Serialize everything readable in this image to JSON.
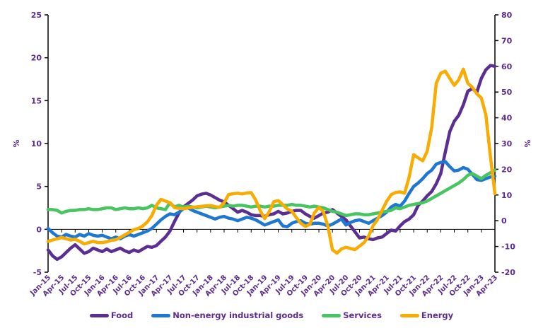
{
  "colors": {
    "text": "#5B2D90",
    "axis_line": "#000000",
    "background": "#FFFFFF",
    "food": "#5B2E91",
    "neig": "#1E78D2",
    "services": "#48C560",
    "energy": "#F8AB00"
  },
  "chart_data": {
    "type": "line",
    "title": "",
    "grid": false,
    "legend_position": "bottom",
    "x": [
      "Jan-15",
      "Feb-15",
      "Mar-15",
      "Apr-15",
      "May-15",
      "Jun-15",
      "Jul-15",
      "Aug-15",
      "Sep-15",
      "Oct-15",
      "Nov-15",
      "Dec-15",
      "Jan-16",
      "Feb-16",
      "Mar-16",
      "Apr-16",
      "May-16",
      "Jun-16",
      "Jul-16",
      "Aug-16",
      "Sep-16",
      "Oct-16",
      "Nov-16",
      "Dec-16",
      "Jan-17",
      "Feb-17",
      "Mar-17",
      "Apr-17",
      "May-17",
      "Jun-17",
      "Jul-17",
      "Aug-17",
      "Sep-17",
      "Oct-17",
      "Nov-17",
      "Dec-17",
      "Jan-18",
      "Feb-18",
      "Mar-18",
      "Apr-18",
      "May-18",
      "Jun-18",
      "Jul-18",
      "Aug-18",
      "Sep-18",
      "Oct-18",
      "Nov-18",
      "Dec-18",
      "Jan-19",
      "Feb-19",
      "Mar-19",
      "Apr-19",
      "May-19",
      "Jun-19",
      "Jul-19",
      "Aug-19",
      "Sep-19",
      "Oct-19",
      "Nov-19",
      "Dec-19",
      "Jan-20",
      "Feb-20",
      "Mar-20",
      "Apr-20",
      "May-20",
      "Jun-20",
      "Jul-20",
      "Aug-20",
      "Sep-20",
      "Oct-20",
      "Nov-20",
      "Dec-20",
      "Jan-21",
      "Feb-21",
      "Mar-21",
      "Apr-21",
      "May-21",
      "Jun-21",
      "Jul-21",
      "Aug-21",
      "Sep-21",
      "Oct-21",
      "Nov-21",
      "Dec-21",
      "Jan-22",
      "Feb-22",
      "Mar-22",
      "Apr-22",
      "May-22",
      "Jun-22",
      "Jul-22",
      "Aug-22",
      "Sep-22",
      "Oct-22",
      "Nov-22",
      "Dec-22",
      "Jan-23",
      "Feb-23",
      "Mar-23",
      "Apr-23"
    ],
    "x_axis_shown_labels": [
      "Jan-15",
      "Apr-15",
      "Jul-15",
      "Oct-15",
      "Jan-16",
      "Apr-16",
      "Jul-16",
      "Oct-16",
      "Jan-17",
      "Apr-17",
      "Jul-17",
      "Oct-17",
      "Jan-18",
      "Apr-18",
      "Jul-18",
      "Oct-18",
      "Jan-19",
      "Apr-19",
      "Jul-19",
      "Oct-19",
      "Jan-20",
      "Apr-20",
      "Jul-20",
      "Oct-20",
      "Jan-21",
      "Apr-21",
      "Jul-21",
      "Oct-21",
      "Jan-22",
      "Apr-22",
      "Jul-22",
      "Oct-22",
      "Jan-23",
      "Apr-23"
    ],
    "left_axis": {
      "label": "%",
      "min": -5,
      "max": 25,
      "step": 5,
      "ticks": [
        25,
        20,
        15,
        10,
        5,
        0,
        -5
      ]
    },
    "right_axis": {
      "label": "%",
      "min": -20,
      "max": 80,
      "step": 10,
      "ticks": [
        80,
        70,
        60,
        50,
        40,
        30,
        20,
        10,
        0,
        -10,
        -20
      ]
    },
    "series": [
      {
        "name": "Food",
        "axis": "left",
        "color": "#5B2E91",
        "values": [
          -2.4,
          -3.1,
          -3.5,
          -3.2,
          -2.7,
          -2.2,
          -1.8,
          -2.3,
          -2.8,
          -2.6,
          -2.2,
          -2.4,
          -2.6,
          -2.3,
          -2.6,
          -2.4,
          -2.2,
          -2.5,
          -2.7,
          -2.4,
          -2.6,
          -2.3,
          -2.0,
          -2.1,
          -1.9,
          -1.4,
          -0.9,
          -0.2,
          0.9,
          1.9,
          2.6,
          3.0,
          3.4,
          3.9,
          4.1,
          4.2,
          4.0,
          3.7,
          3.4,
          3.2,
          2.8,
          2.4,
          2.0,
          2.2,
          2.0,
          1.7,
          1.6,
          1.6,
          1.5,
          1.7,
          1.8,
          2.1,
          1.8,
          1.9,
          2.1,
          2.2,
          2.2,
          1.8,
          1.5,
          1.3,
          1.6,
          1.9,
          2.0,
          2.3,
          1.9,
          1.5,
          1.1,
          0.4,
          -0.3,
          -1.0,
          -0.9,
          -1.1,
          -1.2,
          -1.0,
          -0.9,
          -0.5,
          -0.1,
          -0.2,
          0.4,
          0.9,
          1.2,
          1.7,
          2.8,
          3.3,
          3.9,
          4.4,
          5.3,
          6.5,
          9.0,
          11.4,
          12.6,
          13.3,
          14.5,
          16.1,
          16.4,
          16.0,
          17.6,
          18.6,
          19.1,
          19.0
        ]
      },
      {
        "name": "Non-energy industrial goods",
        "axis": "left",
        "color": "#1E78D2",
        "values": [
          0.1,
          -0.4,
          -0.8,
          -0.9,
          -0.6,
          -0.8,
          -0.9,
          -0.6,
          -0.8,
          -0.5,
          -0.7,
          -0.8,
          -0.7,
          -0.9,
          -1.1,
          -0.9,
          -1.1,
          -0.8,
          -0.6,
          -0.8,
          -0.6,
          -0.4,
          -0.2,
          0.1,
          0.6,
          1.1,
          1.5,
          1.8,
          1.7,
          2.0,
          2.4,
          2.5,
          2.2,
          2.0,
          1.8,
          1.6,
          1.4,
          1.2,
          1.4,
          1.5,
          1.3,
          1.2,
          1.0,
          1.2,
          1.4,
          1.3,
          1.1,
          0.8,
          0.5,
          0.7,
          0.9,
          1.1,
          0.4,
          0.3,
          0.7,
          0.9,
          1.0,
          0.7,
          0.6,
          0.7,
          0.7,
          0.6,
          0.4,
          0.6,
          0.9,
          1.2,
          0.5,
          0.8,
          1.0,
          1.1,
          0.9,
          0.7,
          1.0,
          1.3,
          1.6,
          2.0,
          2.6,
          2.9,
          2.7,
          3.3,
          4.2,
          5.0,
          5.4,
          5.9,
          6.5,
          6.9,
          7.6,
          7.8,
          7.9,
          7.3,
          6.8,
          6.9,
          7.2,
          7.0,
          6.4,
          5.8,
          5.7,
          5.9,
          6.1,
          6.2
        ]
      },
      {
        "name": "Services",
        "axis": "left",
        "color": "#48C560",
        "values": [
          2.3,
          2.3,
          2.2,
          1.9,
          2.1,
          2.2,
          2.2,
          2.3,
          2.3,
          2.4,
          2.3,
          2.3,
          2.4,
          2.5,
          2.5,
          2.3,
          2.4,
          2.5,
          2.4,
          2.4,
          2.5,
          2.4,
          2.5,
          2.8,
          2.5,
          2.4,
          2.3,
          3.1,
          2.6,
          2.8,
          2.6,
          2.7,
          2.6,
          2.5,
          2.6,
          2.7,
          2.6,
          2.5,
          2.6,
          2.7,
          2.8,
          2.7,
          2.8,
          2.8,
          2.7,
          2.6,
          2.7,
          2.7,
          2.6,
          2.7,
          2.7,
          2.8,
          2.8,
          2.8,
          2.9,
          2.8,
          2.8,
          2.7,
          2.6,
          2.7,
          2.6,
          2.5,
          2.3,
          2.1,
          2.0,
          1.8,
          1.6,
          1.7,
          1.8,
          1.8,
          1.7,
          1.7,
          1.8,
          1.9,
          2.0,
          2.1,
          2.2,
          2.5,
          2.4,
          2.6,
          2.8,
          2.9,
          3.0,
          3.1,
          3.3,
          3.6,
          3.9,
          4.2,
          4.5,
          4.8,
          5.1,
          5.4,
          5.8,
          6.3,
          6.5,
          6.2,
          5.9,
          6.3,
          6.6,
          6.9
        ]
      },
      {
        "name": "Energy",
        "axis": "right",
        "color": "#F8AB00",
        "values": [
          -8.0,
          -7.5,
          -7.0,
          -6.5,
          -7.0,
          -7.5,
          -7.2,
          -8.0,
          -9.0,
          -8.5,
          -8.0,
          -8.5,
          -8.5,
          -8.2,
          -7.6,
          -7.4,
          -6.5,
          -5.5,
          -4.5,
          -3.5,
          -3.0,
          -2.0,
          -0.5,
          2.0,
          6.0,
          8.3,
          7.6,
          7.0,
          5.1,
          4.8,
          4.7,
          5.0,
          5.2,
          5.4,
          5.6,
          5.8,
          5.9,
          5.5,
          5.2,
          7.0,
          10.2,
          10.5,
          10.7,
          10.4,
          10.8,
          10.9,
          8.0,
          3.9,
          0.8,
          3.5,
          7.4,
          7.8,
          6.2,
          4.6,
          3.7,
          1.2,
          -1.0,
          -2.2,
          -1.4,
          3.0,
          5.2,
          3.5,
          -2.2,
          -11.3,
          -12.6,
          -11.0,
          -10.3,
          -10.8,
          -11.2,
          -9.9,
          -8.5,
          -6.0,
          -2.0,
          0.5,
          4.0,
          7.5,
          10.1,
          11.0,
          11.2,
          10.7,
          17.0,
          25.7,
          24.4,
          23.3,
          27.0,
          36.2,
          53.4,
          57.3,
          58.1,
          55.3,
          52.6,
          54.8,
          58.9,
          53.4,
          51.8,
          49.3,
          47.7,
          41.1,
          25.0,
          10.5
        ]
      }
    ],
    "legend": [
      "Food",
      "Non-energy industrial goods",
      "Services",
      "Energy"
    ]
  }
}
